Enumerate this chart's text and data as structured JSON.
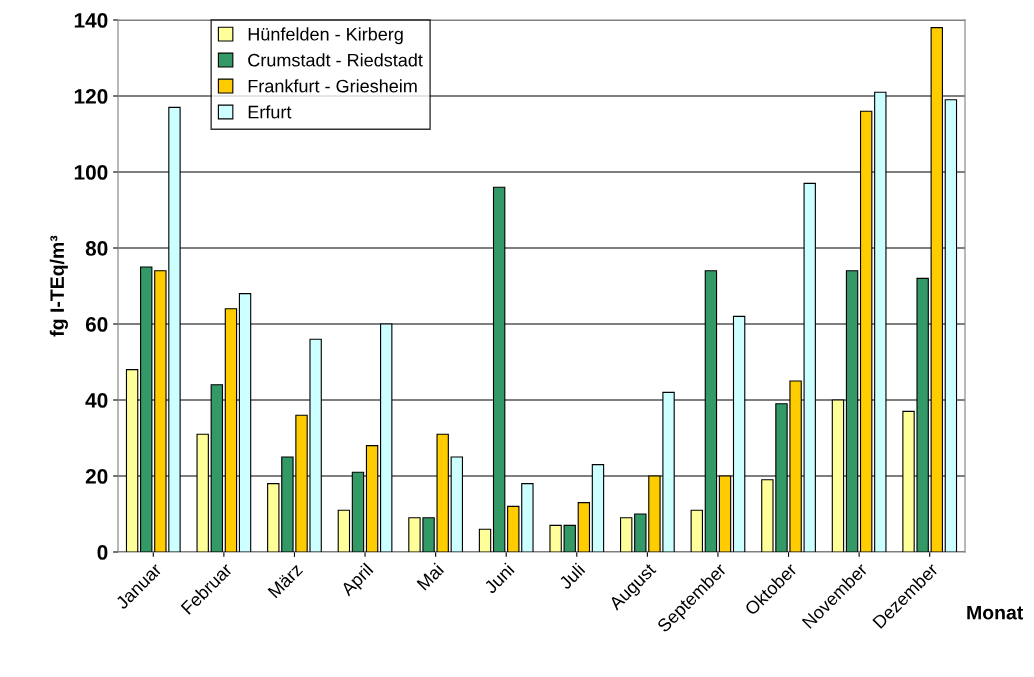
{
  "chart_data": {
    "type": "bar",
    "xlabel": "Monat",
    "ylabel": "fg I-TEq/m³",
    "categories": [
      "Januar",
      "Februar",
      "März",
      "April",
      "Mai",
      "Juni",
      "Juli",
      "August",
      "September",
      "Oktober",
      "November",
      "Dezember"
    ],
    "series": [
      {
        "name": "Hünfelden - Kirberg",
        "color": "#ffff99",
        "values": [
          48,
          31,
          18,
          11,
          9,
          6,
          7,
          9,
          11,
          19,
          40,
          37
        ]
      },
      {
        "name": "Crumstadt - Riedstadt",
        "color": "#339966",
        "values": [
          75,
          44,
          25,
          21,
          9,
          96,
          7,
          10,
          74,
          39,
          74,
          72
        ]
      },
      {
        "name": "Frankfurt - Griesheim",
        "color": "#ffcc00",
        "values": [
          74,
          64,
          36,
          28,
          31,
          12,
          13,
          20,
          20,
          45,
          116,
          138
        ]
      },
      {
        "name": "Erfurt",
        "color": "#ccffff",
        "values": [
          117,
          68,
          56,
          60,
          25,
          18,
          23,
          42,
          62,
          97,
          121,
          119
        ]
      }
    ],
    "ylim": [
      0,
      140
    ],
    "yticks": [
      0,
      20,
      40,
      60,
      80,
      100,
      120,
      140
    ],
    "grid": "y",
    "legend": "top left"
  }
}
